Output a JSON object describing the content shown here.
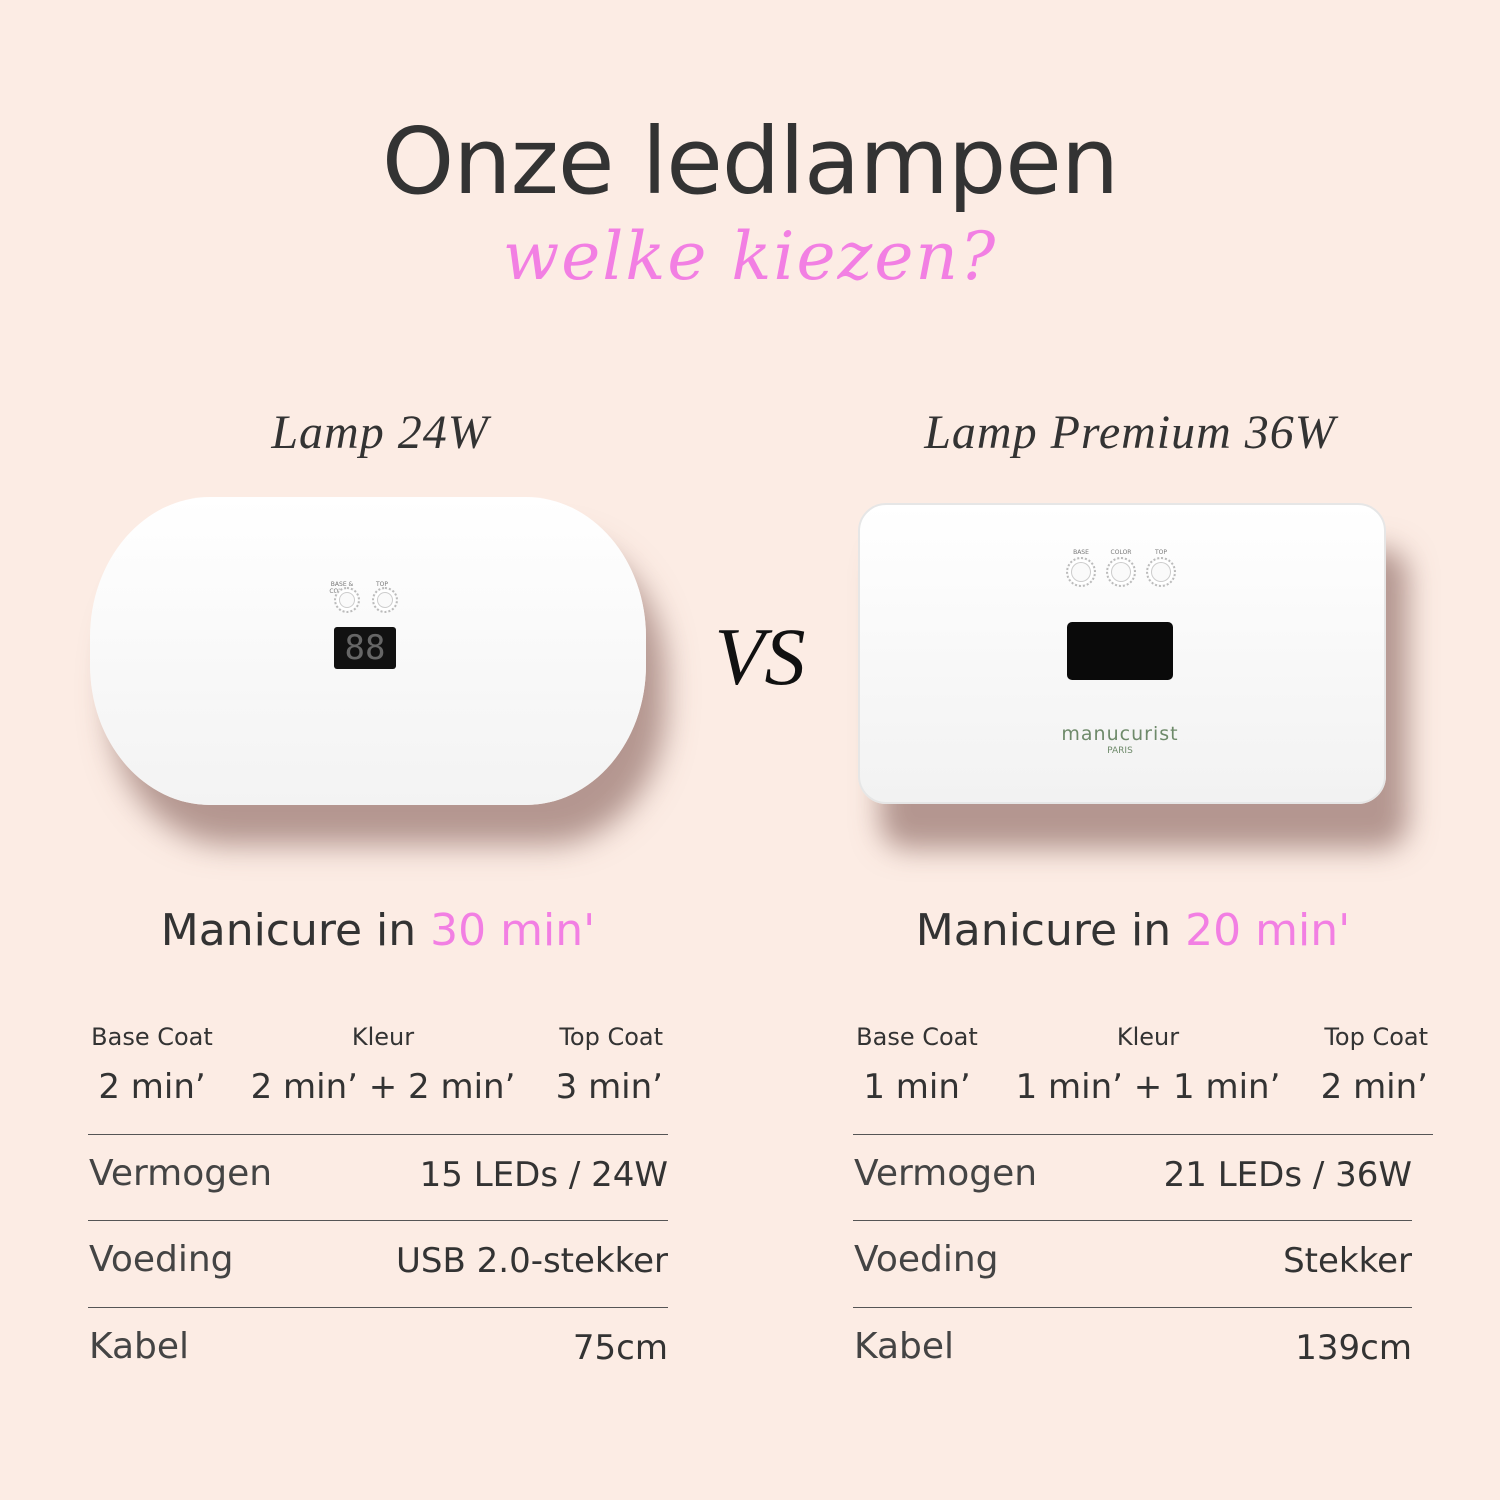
{
  "header": {
    "title": "Onze ledlampen",
    "subtitle": "welke kiezen?"
  },
  "vs_label": "VS",
  "accent_color": "#f27fe3",
  "products": [
    {
      "name": "Lamp 24W",
      "device_buttons": [
        "BASE & COLOUR",
        "TOP"
      ],
      "manicure_prefix": "Manicure in",
      "manicure_time": "30 min'",
      "times": [
        {
          "label": "Base Coat",
          "value": "2 min’"
        },
        {
          "label": "Kleur",
          "value": "2 min’ + 2 min’"
        },
        {
          "label": "Top Coat",
          "value": "3 min’"
        }
      ],
      "specs": [
        {
          "label": "Vermogen",
          "value": "15 LEDs / 24W"
        },
        {
          "label": "Voeding",
          "value": "USB 2.0-stekker"
        },
        {
          "label": "Kabel",
          "value": "75cm"
        }
      ]
    },
    {
      "name": "Lamp Premium 36W",
      "device_buttons": [
        "BASE",
        "COLOR",
        "TOP"
      ],
      "brand": "manucurist",
      "brand_sub": "PARIS",
      "manicure_prefix": "Manicure in",
      "manicure_time": "20 min'",
      "times": [
        {
          "label": "Base Coat",
          "value": "1 min’"
        },
        {
          "label": "Kleur",
          "value": "1 min’ + 1 min’"
        },
        {
          "label": "Top Coat",
          "value": "2 min’"
        }
      ],
      "specs": [
        {
          "label": "Vermogen",
          "value": "21 LEDs / 36W"
        },
        {
          "label": "Voeding",
          "value": "Stekker"
        },
        {
          "label": "Kabel",
          "value": "139cm"
        }
      ]
    }
  ]
}
